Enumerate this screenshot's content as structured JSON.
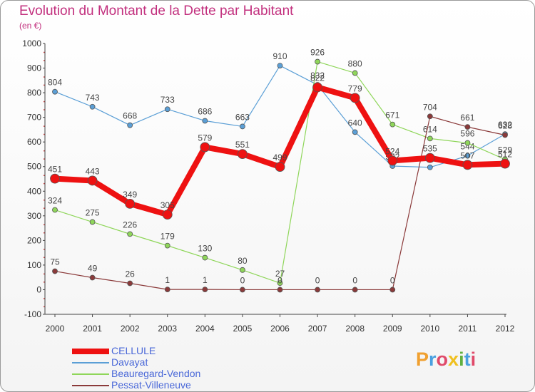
{
  "title": "Evolution du Montant de la Dette par Habitant",
  "subtitle": "(en €)",
  "logo": {
    "text": "Proxiti",
    "letters": [
      {
        "ch": "P",
        "color": "#f0a030"
      },
      {
        "ch": "r",
        "color": "#4aa0e0"
      },
      {
        "ch": "o",
        "color": "#e04a6a"
      },
      {
        "ch": "x",
        "color": "#f0c020"
      },
      {
        "ch": "i",
        "color": "#60b040"
      },
      {
        "ch": "t",
        "color": "#4aa0e0"
      },
      {
        "ch": "i",
        "color": "#e04a6a"
      }
    ]
  },
  "chart_data": {
    "type": "line",
    "title": "Evolution du Montant de la Dette par Habitant",
    "subtitle": "(en €)",
    "x": [
      2000,
      2001,
      2002,
      2003,
      2004,
      2005,
      2006,
      2007,
      2008,
      2009,
      2010,
      2011,
      2012
    ],
    "ylim": [
      -100,
      1000
    ],
    "yticks": [
      -100,
      0,
      100,
      200,
      300,
      400,
      500,
      600,
      700,
      800,
      900,
      1000
    ],
    "grid": false,
    "legend_position": "bottom-left",
    "series": [
      {
        "name": "Davayat",
        "color": "#5b9fd6",
        "width": 1.2,
        "marker": 3.5,
        "values": [
          804,
          743,
          668,
          733,
          686,
          663,
          910,
          832,
          640,
          502,
          497,
          544,
          632
        ],
        "labels": [
          "804",
          "743",
          "668",
          "733",
          "686",
          "663",
          "910",
          "832",
          "640",
          "502",
          "",
          "544",
          "632"
        ]
      },
      {
        "name": "Beauregard-Vendon",
        "color": "#8fd65a",
        "width": 1.2,
        "marker": 3.5,
        "values": [
          324,
          275,
          226,
          179,
          130,
          80,
          27,
          926,
          880,
          671,
          614,
          596,
          529
        ],
        "labels": [
          "324",
          "275",
          "226",
          "179",
          "130",
          "80",
          "27",
          "926",
          "880",
          "671",
          "614",
          "596",
          "529"
        ]
      },
      {
        "name": "Pessat-Villeneuve",
        "color": "#8b3a3a",
        "width": 1.2,
        "marker": 3.5,
        "values": [
          75,
          49,
          26,
          1,
          1,
          0,
          0,
          0,
          0,
          0,
          704,
          661,
          628
        ],
        "labels": [
          "75",
          "49",
          "26",
          "1",
          "1",
          "0",
          "0",
          "0",
          "0",
          "0",
          "704",
          "661",
          "628"
        ]
      },
      {
        "name": "CELLULE",
        "color": "#ee1111",
        "width": 8,
        "marker": 6.5,
        "values": [
          451,
          443,
          349,
          305,
          579,
          551,
          499,
          822,
          779,
          524,
          535,
          507,
          512
        ],
        "labels": [
          "451",
          "443",
          "349",
          "305",
          "579",
          "551",
          "499",
          "822",
          "779",
          "524",
          "535",
          "507",
          "512"
        ]
      }
    ]
  },
  "legend": [
    {
      "name": "CELLULE",
      "color": "#ee1111",
      "thickness": 8
    },
    {
      "name": "Davayat",
      "color": "#5b9fd6",
      "thickness": 2
    },
    {
      "name": "Beauregard-Vendon",
      "color": "#8fd65a",
      "thickness": 2
    },
    {
      "name": "Pessat-Villeneuve",
      "color": "#8b3a3a",
      "thickness": 2
    }
  ]
}
